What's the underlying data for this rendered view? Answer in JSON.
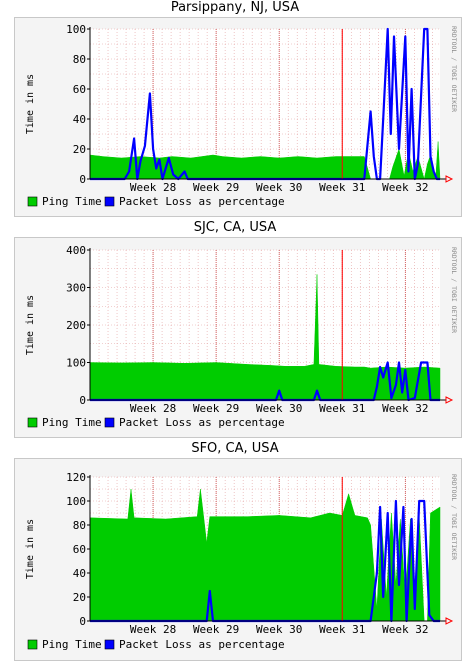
{
  "chart_data": [
    {
      "type": "area",
      "title": "Parsippany, NJ, USA",
      "ylabel": "Time in ms",
      "watermark": "RRDTOOL / TOBI OETIKER",
      "ylim": [
        0,
        100
      ],
      "yticks": [
        0,
        20,
        40,
        60,
        80,
        100
      ],
      "xlim": [
        27.0,
        32.55
      ],
      "week_labels": [
        "Week 28",
        "Week 29",
        "Week 30",
        "Week 31",
        "Week 32"
      ],
      "grid": true,
      "legend_position": "bottom",
      "series": [
        {
          "name": "Ping Time",
          "color": "#00cc00",
          "kind": "area",
          "points": [
            [
              27.0,
              16
            ],
            [
              27.2,
              15
            ],
            [
              27.5,
              14
            ],
            [
              27.8,
              15
            ],
            [
              28.1,
              14
            ],
            [
              28.3,
              15
            ],
            [
              28.6,
              14
            ],
            [
              28.95,
              16
            ],
            [
              29.1,
              15
            ],
            [
              29.4,
              14
            ],
            [
              29.7,
              15
            ],
            [
              30.0,
              14
            ],
            [
              30.3,
              15
            ],
            [
              30.6,
              14
            ],
            [
              30.9,
              15
            ],
            [
              31.2,
              15
            ],
            [
              31.35,
              15
            ],
            [
              31.45,
              0
            ],
            [
              31.75,
              0
            ],
            [
              31.8,
              8
            ],
            [
              31.9,
              20
            ],
            [
              31.98,
              2
            ],
            [
              32.05,
              18
            ],
            [
              32.12,
              5
            ],
            [
              32.2,
              15
            ],
            [
              32.3,
              0
            ],
            [
              32.35,
              10
            ],
            [
              32.4,
              16
            ],
            [
              32.48,
              0
            ],
            [
              32.52,
              25
            ],
            [
              32.55,
              0
            ]
          ]
        },
        {
          "name": "Packet Loss as percentage",
          "color": "#0000ff",
          "kind": "line",
          "points": [
            [
              27.0,
              0
            ],
            [
              27.55,
              0
            ],
            [
              27.62,
              5
            ],
            [
              27.7,
              27
            ],
            [
              27.75,
              0
            ],
            [
              27.8,
              12
            ],
            [
              27.87,
              22
            ],
            [
              27.95,
              57
            ],
            [
              28.0,
              20
            ],
            [
              28.05,
              7
            ],
            [
              28.1,
              13
            ],
            [
              28.15,
              0
            ],
            [
              28.25,
              14
            ],
            [
              28.32,
              3
            ],
            [
              28.4,
              0
            ],
            [
              28.5,
              5
            ],
            [
              28.55,
              0
            ],
            [
              31.35,
              0
            ],
            [
              31.45,
              45
            ],
            [
              31.5,
              15
            ],
            [
              31.55,
              0
            ],
            [
              31.6,
              0
            ],
            [
              31.65,
              40
            ],
            [
              31.72,
              100
            ],
            [
              31.77,
              30
            ],
            [
              31.82,
              95
            ],
            [
              31.9,
              20
            ],
            [
              32.0,
              95
            ],
            [
              32.05,
              5
            ],
            [
              32.1,
              60
            ],
            [
              32.15,
              0
            ],
            [
              32.2,
              10
            ],
            [
              32.3,
              100
            ],
            [
              32.35,
              100
            ],
            [
              32.4,
              15
            ],
            [
              32.45,
              5
            ],
            [
              32.5,
              0
            ],
            [
              32.55,
              0
            ]
          ]
        }
      ]
    },
    {
      "type": "area",
      "title": "SJC, CA, USA",
      "ylabel": "Time in ms",
      "watermark": "RRDTOOL / TOBI OETIKER",
      "ylim": [
        0,
        400
      ],
      "yticks": [
        0,
        100,
        200,
        300,
        400
      ],
      "xlim": [
        27.0,
        32.55
      ],
      "week_labels": [
        "Week 28",
        "Week 29",
        "Week 30",
        "Week 31",
        "Week 32"
      ],
      "grid": true,
      "legend_position": "bottom",
      "series": [
        {
          "name": "Ping Time",
          "color": "#00cc00",
          "kind": "area",
          "points": [
            [
              27.0,
              100
            ],
            [
              27.5,
              99
            ],
            [
              28.0,
              100
            ],
            [
              28.5,
              98
            ],
            [
              29.0,
              100
            ],
            [
              29.5,
              95
            ],
            [
              29.9,
              92
            ],
            [
              30.1,
              90
            ],
            [
              30.4,
              90
            ],
            [
              30.55,
              95
            ],
            [
              30.6,
              335
            ],
            [
              30.63,
              95
            ],
            [
              30.9,
              90
            ],
            [
              31.2,
              88
            ],
            [
              31.35,
              88
            ],
            [
              31.45,
              85
            ],
            [
              31.7,
              88
            ],
            [
              32.0,
              85
            ],
            [
              32.3,
              88
            ],
            [
              32.55,
              85
            ]
          ]
        },
        {
          "name": "Packet Loss as percentage",
          "color": "#0000ff",
          "kind": "line",
          "points": [
            [
              27.0,
              0
            ],
            [
              29.95,
              0
            ],
            [
              30.0,
              25
            ],
            [
              30.05,
              0
            ],
            [
              30.55,
              0
            ],
            [
              30.6,
              25
            ],
            [
              30.65,
              0
            ],
            [
              31.5,
              0
            ],
            [
              31.55,
              35
            ],
            [
              31.6,
              88
            ],
            [
              31.65,
              60
            ],
            [
              31.72,
              100
            ],
            [
              31.78,
              5
            ],
            [
              31.85,
              40
            ],
            [
              31.9,
              100
            ],
            [
              31.95,
              20
            ],
            [
              32.0,
              80
            ],
            [
              32.05,
              0
            ],
            [
              32.15,
              5
            ],
            [
              32.25,
              100
            ],
            [
              32.35,
              100
            ],
            [
              32.4,
              0
            ],
            [
              32.55,
              0
            ]
          ]
        }
      ]
    },
    {
      "type": "area",
      "title": "SFO, CA, USA",
      "ylabel": "Time in ms",
      "watermark": "RRDTOOL / TOBI OETIKER",
      "ylim": [
        0,
        120
      ],
      "yticks": [
        0,
        20,
        40,
        60,
        80,
        100,
        120
      ],
      "xlim": [
        27.0,
        32.55
      ],
      "week_labels": [
        "Week 28",
        "Week 29",
        "Week 30",
        "Week 31",
        "Week 32"
      ],
      "grid": true,
      "legend_position": "bottom",
      "series": [
        {
          "name": "Ping Time",
          "color": "#00cc00",
          "kind": "area",
          "points": [
            [
              27.0,
              86
            ],
            [
              27.6,
              85
            ],
            [
              27.65,
              110
            ],
            [
              27.7,
              86
            ],
            [
              28.2,
              85
            ],
            [
              28.7,
              87
            ],
            [
              28.75,
              110
            ],
            [
              28.8,
              88
            ],
            [
              28.85,
              65
            ],
            [
              28.9,
              87
            ],
            [
              29.5,
              87
            ],
            [
              30.0,
              88
            ],
            [
              30.5,
              86
            ],
            [
              30.8,
              90
            ],
            [
              31.0,
              88
            ],
            [
              31.1,
              106
            ],
            [
              31.2,
              88
            ],
            [
              31.4,
              86
            ],
            [
              31.45,
              80
            ],
            [
              31.55,
              10
            ],
            [
              31.62,
              85
            ],
            [
              31.7,
              20
            ],
            [
              31.78,
              90
            ],
            [
              31.85,
              30
            ],
            [
              31.92,
              85
            ],
            [
              32.0,
              20
            ],
            [
              32.08,
              85
            ],
            [
              32.15,
              25
            ],
            [
              32.22,
              88
            ],
            [
              32.3,
              0
            ],
            [
              32.35,
              0
            ],
            [
              32.4,
              90
            ],
            [
              32.55,
              95
            ]
          ]
        },
        {
          "name": "Packet Loss as percentage",
          "color": "#0000ff",
          "kind": "line",
          "points": [
            [
              27.0,
              0
            ],
            [
              28.85,
              0
            ],
            [
              28.9,
              25
            ],
            [
              28.95,
              0
            ],
            [
              31.45,
              0
            ],
            [
              31.55,
              40
            ],
            [
              31.6,
              95
            ],
            [
              31.65,
              20
            ],
            [
              31.72,
              90
            ],
            [
              31.78,
              0
            ],
            [
              31.85,
              100
            ],
            [
              31.9,
              30
            ],
            [
              31.97,
              95
            ],
            [
              32.02,
              0
            ],
            [
              32.1,
              85
            ],
            [
              32.15,
              10
            ],
            [
              32.22,
              100
            ],
            [
              32.3,
              100
            ],
            [
              32.38,
              5
            ],
            [
              32.45,
              0
            ],
            [
              32.55,
              0
            ]
          ]
        }
      ]
    }
  ]
}
